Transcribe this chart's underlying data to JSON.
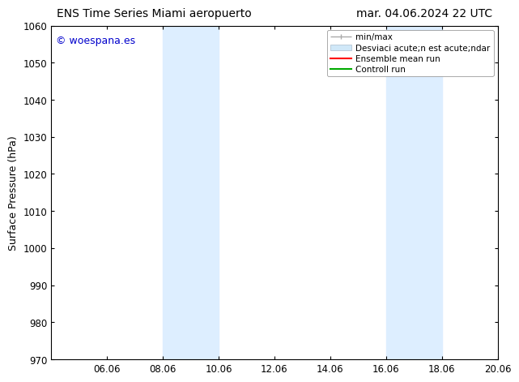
{
  "title_left": "ENS Time Series Miami aeropuerto",
  "title_right": "mar. 04.06.2024 22 UTC",
  "ylabel": "Surface Pressure (hPa)",
  "ylim": [
    970,
    1060
  ],
  "yticks": [
    970,
    980,
    990,
    1000,
    1010,
    1020,
    1030,
    1040,
    1050,
    1060
  ],
  "xlim": [
    0.0,
    16.0
  ],
  "xtick_labels": [
    "06.06",
    "08.06",
    "10.06",
    "12.06",
    "14.06",
    "16.06",
    "18.06",
    "20.06"
  ],
  "xtick_positions": [
    2,
    4,
    6,
    8,
    10,
    12,
    14,
    16
  ],
  "watermark": "© woespana.es",
  "watermark_color": "#0000cc",
  "background_color": "#ffffff",
  "plot_bg_color": "#ffffff",
  "shaded_regions": [
    {
      "xmin": 4,
      "xmax": 6,
      "color": "#ddeeff"
    },
    {
      "xmin": 12,
      "xmax": 14,
      "color": "#ddeeff"
    }
  ],
  "legend_label_minmax": "min/max",
  "legend_label_std": "Desviaci acute;n est acute;ndar",
  "legend_label_ens": "Ensemble mean run",
  "legend_label_ctrl": "Controll run",
  "minmax_color": "#aaaaaa",
  "std_color": "#d0e8f8",
  "ens_color": "#ff0000",
  "ctrl_color": "#00aa00",
  "title_fontsize": 10,
  "axis_label_fontsize": 9,
  "tick_fontsize": 8.5,
  "legend_fontsize": 7.5,
  "watermark_fontsize": 9
}
